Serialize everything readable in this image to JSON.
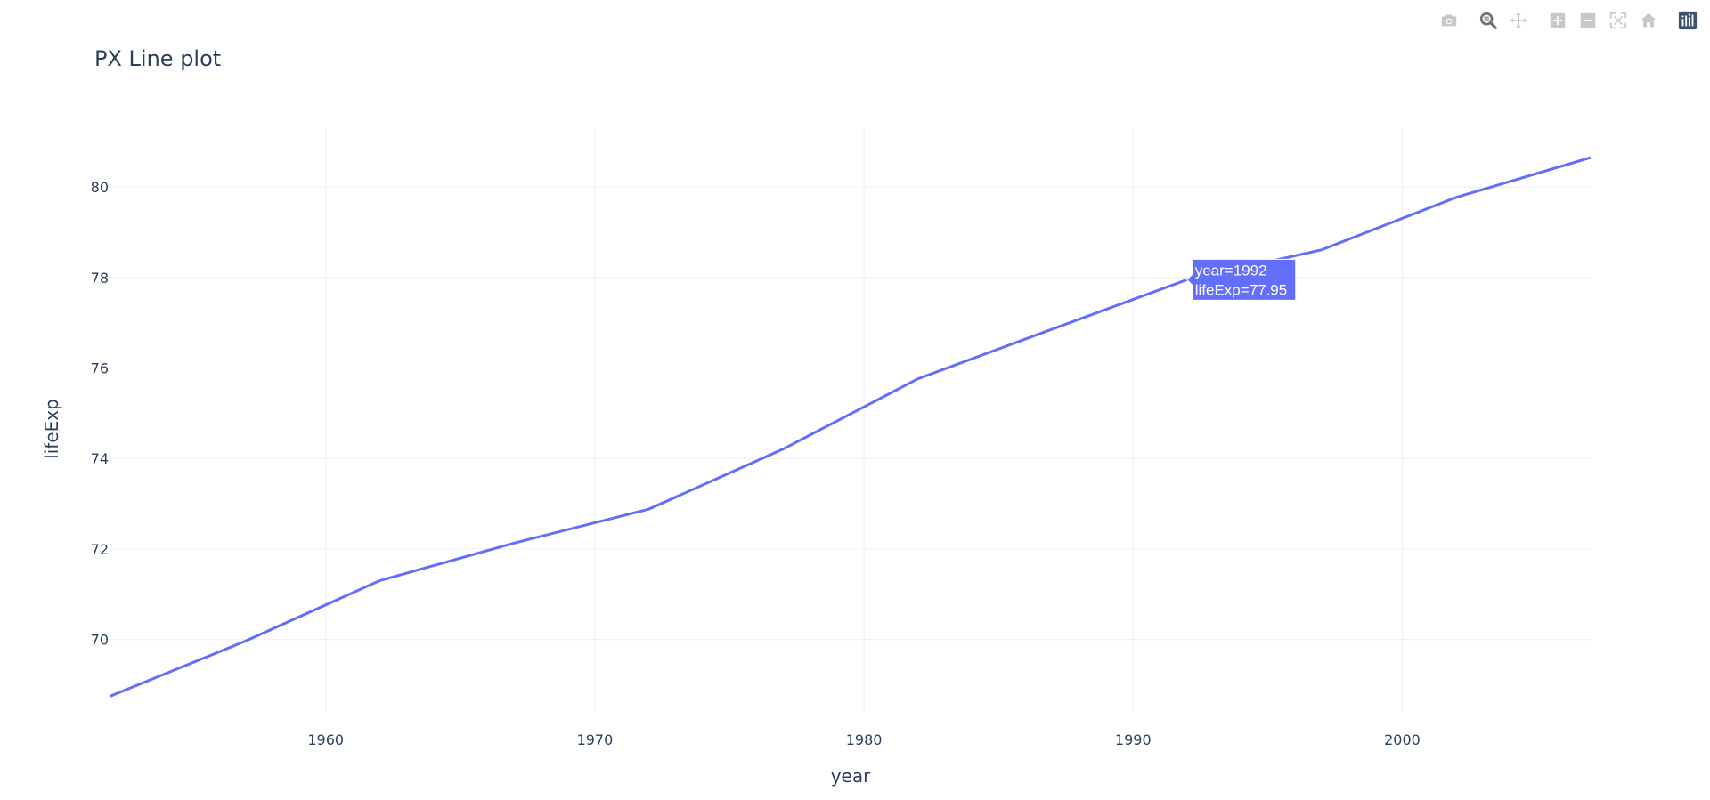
{
  "colors": {
    "line": "#636efa",
    "grid": "#ebf0f8",
    "text": "#2a3f5f",
    "modebar_icon": "#c8c8c8",
    "modebar_active": "#737373",
    "logo_bg": "#3f4f75"
  },
  "modebar": {
    "buttons": [
      {
        "icon": "camera-icon"
      },
      {
        "icon": "zoom-icon"
      },
      {
        "icon": "pan-icon"
      },
      {
        "icon": "zoom-in-icon"
      },
      {
        "icon": "zoom-out-icon"
      },
      {
        "icon": "autoscale-icon"
      },
      {
        "icon": "home-icon"
      },
      {
        "icon": "plotly-logo-icon"
      }
    ]
  },
  "tooltip": {
    "line1": "year=1992",
    "line2": "lifeExp=77.95"
  },
  "chart_data": {
    "type": "line",
    "title": "PX Line plot",
    "xlabel": "year",
    "ylabel": "lifeExp",
    "xlim": [
      1952,
      2007
    ],
    "ylim": [
      68.4,
      81.3
    ],
    "xticks": [
      1960,
      1970,
      1980,
      1990,
      2000
    ],
    "yticks": [
      70,
      72,
      74,
      76,
      78,
      80
    ],
    "grid": true,
    "legend": "none",
    "series": [
      {
        "x": [
          1952,
          1957,
          1962,
          1967,
          1972,
          1977,
          1982,
          1987,
          1992,
          1997,
          2002,
          2007
        ],
        "y": [
          68.75,
          69.96,
          71.3,
          72.13,
          72.88,
          74.21,
          75.76,
          76.86,
          77.95,
          78.61,
          79.77,
          80.65
        ]
      }
    ]
  }
}
